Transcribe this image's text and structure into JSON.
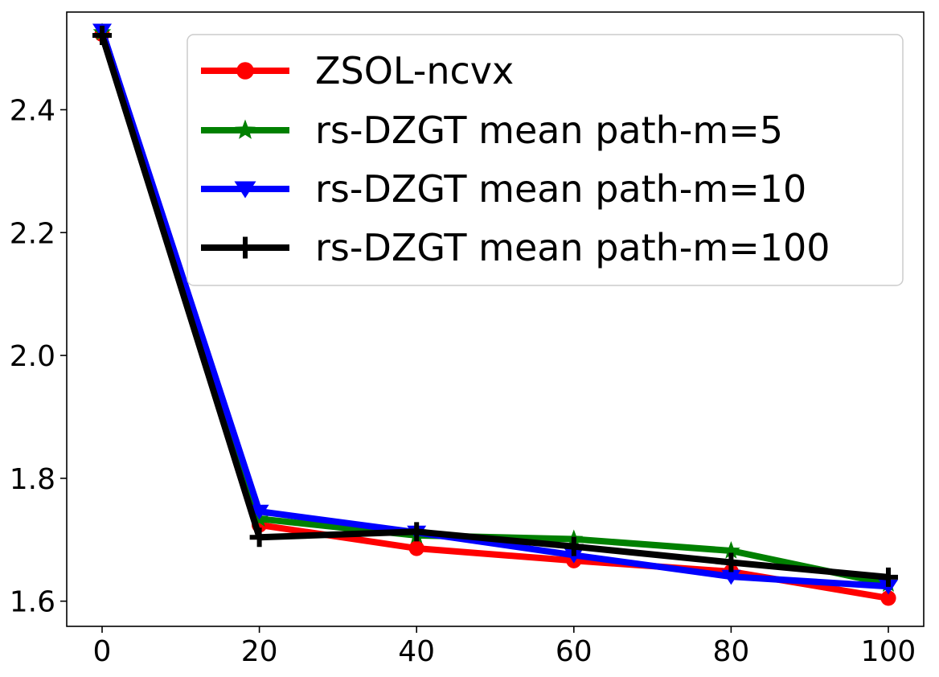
{
  "chart_data": {
    "type": "line",
    "title": "",
    "xlabel": "",
    "ylabel": "",
    "x": [
      0,
      20,
      40,
      60,
      80,
      100
    ],
    "xlim": [
      -4.5,
      104.5
    ],
    "ylim": [
      1.559,
      2.559
    ],
    "xticks": [
      0,
      20,
      40,
      60,
      80,
      100
    ],
    "yticks": [
      1.6,
      1.8,
      2.0,
      2.2,
      2.4
    ],
    "xtick_labels": [
      "0",
      "20",
      "40",
      "60",
      "80",
      "100"
    ],
    "ytick_labels": [
      "1.6",
      "1.8",
      "2.0",
      "2.2",
      "2.4"
    ],
    "grid": false,
    "legend_position": "top-right",
    "series": [
      {
        "name": "ZSOL-ncvx",
        "color": "#ff0000",
        "marker": "circle",
        "values": [
          2.523,
          1.724,
          1.686,
          1.666,
          1.648,
          1.605
        ]
      },
      {
        "name": "rs-DZGT mean path-m=5",
        "color": "#008000",
        "marker": "star",
        "values": [
          2.526,
          1.734,
          1.707,
          1.701,
          1.682,
          1.628
        ]
      },
      {
        "name": "rs-DZGT mean path-m=10",
        "color": "#0000ff",
        "marker": "triangle-down",
        "values": [
          2.529,
          1.746,
          1.712,
          1.675,
          1.64,
          1.624
        ]
      },
      {
        "name": "rs-DZGT mean path-m=100",
        "color": "#000000",
        "marker": "plus",
        "values": [
          2.521,
          1.704,
          1.713,
          1.689,
          1.663,
          1.639
        ]
      }
    ]
  }
}
